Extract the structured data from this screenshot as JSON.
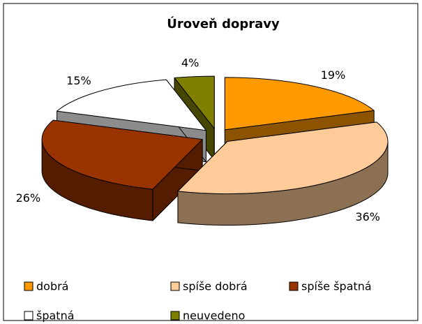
{
  "chart_data": {
    "type": "pie3d",
    "title": "Úroveň dopravy",
    "categories": [
      "dobrá",
      "spíše dobrá",
      "spíše špatná",
      "špatná",
      "neuvedeno"
    ],
    "values": [
      19,
      36,
      26,
      15,
      4
    ],
    "value_labels": [
      "19%",
      "36%",
      "26%",
      "15%",
      "4%"
    ],
    "colors": [
      "#FF9900",
      "#FFCC99",
      "#993300",
      "#FFFFFF",
      "#808000"
    ],
    "legend": "bottom"
  }
}
